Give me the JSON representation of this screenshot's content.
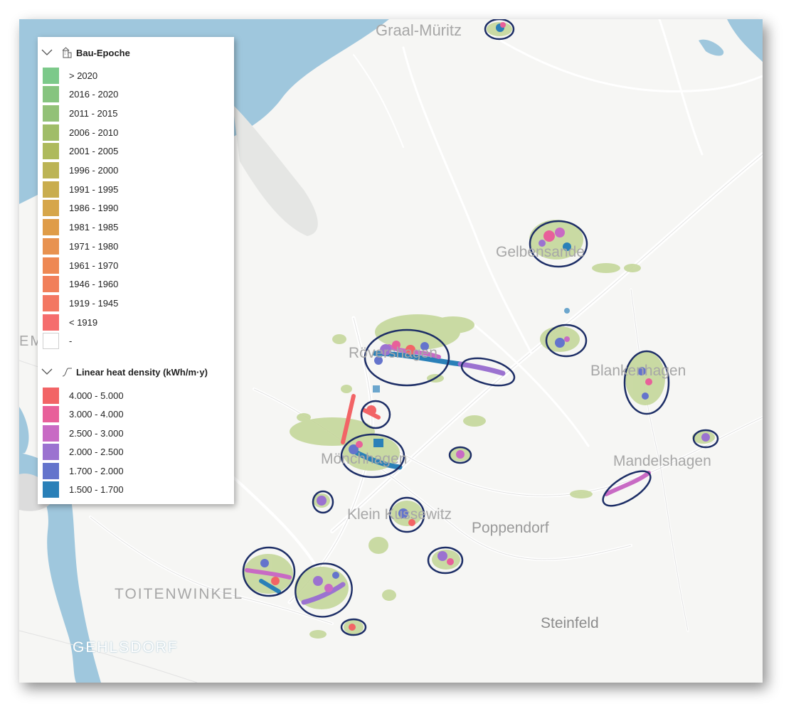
{
  "map": {
    "colors": {
      "water": "#9fc7dd",
      "land": "#f6f6f4",
      "road": "#ffffff",
      "settlement": "#c5d79b",
      "highlight_ellipse": "#1d2e66",
      "label": "#a7a7a7"
    },
    "places": [
      {
        "id": "graal-muritz",
        "name": "Graal-Müritz"
      },
      {
        "id": "gelbensande",
        "name": "Gelbensande"
      },
      {
        "id": "rovershagen",
        "name": "Rövershagen"
      },
      {
        "id": "blankenhagen",
        "name": "Blankenhagen"
      },
      {
        "id": "monchhagen",
        "name": "Mönchhagen"
      },
      {
        "id": "mandelshagen",
        "name": "Mandelshagen"
      },
      {
        "id": "klein-kussewitz",
        "name": "Klein Kussewitz"
      },
      {
        "id": "poppendorf",
        "name": "Poppendorf"
      },
      {
        "id": "toitenwinkel",
        "name": "TOITENWINKEL"
      },
      {
        "id": "gehlsdorf",
        "name": "GEHLSDORF"
      },
      {
        "id": "steinfeld",
        "name": "Steinfeld"
      },
      {
        "id": "em",
        "name": "EM"
      }
    ]
  },
  "legend": {
    "bau_epoche": {
      "title": "Bau-Epoche",
      "icon": "building-icon",
      "collapse_icon": "chevron-down-icon",
      "items": [
        {
          "label": "> 2020",
          "color": "#7cc98a"
        },
        {
          "label": "2016 - 2020",
          "color": "#86c47f"
        },
        {
          "label": "2011 - 2015",
          "color": "#92c177"
        },
        {
          "label": "2006 - 2010",
          "color": "#a0bd68"
        },
        {
          "label": "2001 - 2005",
          "color": "#aeba5c"
        },
        {
          "label": "1996 - 2000",
          "color": "#bcb455"
        },
        {
          "label": "1991 - 1995",
          "color": "#c9ad4e"
        },
        {
          "label": "1986 - 1990",
          "color": "#d6a64a"
        },
        {
          "label": "1981 - 1985",
          "color": "#df9c48"
        },
        {
          "label": "1971 - 1980",
          "color": "#e89250"
        },
        {
          "label": "1961 - 1970",
          "color": "#ee8853"
        },
        {
          "label": "1946 - 1960",
          "color": "#f17f5a"
        },
        {
          "label": "1919 - 1945",
          "color": "#f37762"
        },
        {
          "label": "< 1919",
          "color": "#f56d6d"
        },
        {
          "label": "-",
          "color": "#ffffff"
        }
      ]
    },
    "heat_density": {
      "title": "Linear heat density (kWh/m·y)",
      "icon": "curve-icon",
      "collapse_icon": "chevron-down-icon",
      "items": [
        {
          "label": "4.000 - 5.000",
          "color": "#f26466"
        },
        {
          "label": "3.000 - 4.000",
          "color": "#e8609a"
        },
        {
          "label": "2.500 - 3.000",
          "color": "#c86ac4"
        },
        {
          "label": "2.000 - 2.500",
          "color": "#9b72d0"
        },
        {
          "label": "1.700 - 2.000",
          "color": "#6474cc"
        },
        {
          "label": "1.500 - 1.700",
          "color": "#2a80b8"
        }
      ]
    }
  }
}
